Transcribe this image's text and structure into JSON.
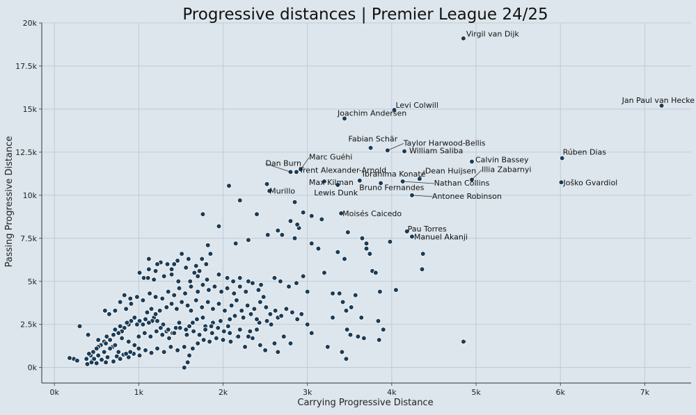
{
  "chart_data": {
    "type": "scatter",
    "title": "Progressive distances | Premier League 24/25",
    "xlabel": "Carrying Progressive Distance",
    "ylabel": "Passing Progressive Distance",
    "xlim": [
      -150,
      7550
    ],
    "ylim": [
      -900,
      20000
    ],
    "x_ticks": [
      0,
      1000,
      2000,
      3000,
      4000,
      5000,
      6000,
      7000
    ],
    "x_tick_labels": [
      "0k",
      "1k",
      "2k",
      "3k",
      "4k",
      "5k",
      "6k",
      "7k"
    ],
    "y_ticks": [
      0,
      2500,
      5000,
      7500,
      10000,
      12500,
      15000,
      17500,
      20000
    ],
    "y_tick_labels": [
      "0k",
      "2.5k",
      "5k",
      "7.5k",
      "10k",
      "12.5k",
      "15k",
      "17.5k",
      "20k"
    ],
    "grid": true,
    "colors": {
      "background": "#dde6ec",
      "point": "#1b3c57",
      "point_edge": "#ffffff",
      "grid": "#b9c4d2",
      "leader": "#333333"
    },
    "labeled_points": [
      {
        "name": "Virgil van Dijk",
        "x": 4850,
        "y": 19100
      },
      {
        "name": "Jan Paul van Hecke",
        "x": 7200,
        "y": 15200
      },
      {
        "name": "Levi Colwill",
        "x": 4030,
        "y": 14950
      },
      {
        "name": "Joachim Andersen",
        "x": 3440,
        "y": 14450
      },
      {
        "name": "Fabian Schär",
        "x": 3750,
        "y": 12750
      },
      {
        "name": "Taylor Harwood-Bellis",
        "x": 3950,
        "y": 12600
      },
      {
        "name": "William Saliba",
        "x": 4150,
        "y": 12550
      },
      {
        "name": "Rúben Dias",
        "x": 6020,
        "y": 12150
      },
      {
        "name": "Calvin Bassey",
        "x": 4950,
        "y": 11950
      },
      {
        "name": "Marc Guéhi",
        "x": 2920,
        "y": 11500
      },
      {
        "name": "Trent Alexander-Arnold",
        "x": 2870,
        "y": 11350
      },
      {
        "name": "Dan Burn",
        "x": 2800,
        "y": 11350
      },
      {
        "name": "Dean Huijsen",
        "x": 4330,
        "y": 10950
      },
      {
        "name": "Illia Zabarnyi",
        "x": 4950,
        "y": 10900
      },
      {
        "name": "Ibrahima Konaté",
        "x": 3620,
        "y": 10850
      },
      {
        "name": "Max Kilman",
        "x": 3200,
        "y": 10800
      },
      {
        "name": "Nathan Collins",
        "x": 4130,
        "y": 10800
      },
      {
        "name": "Joško Gvardiol",
        "x": 6010,
        "y": 10750
      },
      {
        "name": "Bruno Fernandes",
        "x": 3870,
        "y": 10700
      },
      {
        "name": "Lewis Dunk",
        "x": 3360,
        "y": 10600
      },
      {
        "name": "Murillo",
        "x": 2550,
        "y": 10250
      },
      {
        "name": "Antonee Robinson",
        "x": 4240,
        "y": 10000
      },
      {
        "name": "Moisés Caicedo",
        "x": 3400,
        "y": 8950
      },
      {
        "name": "Pau Torres",
        "x": 4180,
        "y": 7900
      },
      {
        "name": "Manuel Akanji",
        "x": 4240,
        "y": 7600
      }
    ],
    "points": [
      [
        2520,
        10650
      ],
      [
        2070,
        10550
      ],
      [
        2200,
        9700
      ],
      [
        1760,
        8900
      ],
      [
        2400,
        8900
      ],
      [
        2850,
        9600
      ],
      [
        2950,
        9000
      ],
      [
        3050,
        8800
      ],
      [
        3170,
        8600
      ],
      [
        1950,
        8200
      ],
      [
        2650,
        7950
      ],
      [
        2700,
        7700
      ],
      [
        2900,
        8100
      ],
      [
        2880,
        8300
      ],
      [
        2800,
        8500
      ],
      [
        2150,
        7200
      ],
      [
        2300,
        7400
      ],
      [
        2530,
        7700
      ],
      [
        2850,
        7500
      ],
      [
        3050,
        7200
      ],
      [
        3130,
        6900
      ],
      [
        3480,
        7850
      ],
      [
        3650,
        7500
      ],
      [
        3700,
        7200
      ],
      [
        3980,
        7300
      ],
      [
        4370,
        6600
      ],
      [
        3360,
        6700
      ],
      [
        3440,
        6300
      ],
      [
        3700,
        6900
      ],
      [
        3740,
        6600
      ],
      [
        3770,
        5600
      ],
      [
        3810,
        5500
      ],
      [
        4360,
        5700
      ],
      [
        4050,
        4500
      ],
      [
        1820,
        7100
      ],
      [
        1750,
        6300
      ],
      [
        1680,
        5900
      ],
      [
        1590,
        6300
      ],
      [
        1510,
        6600
      ],
      [
        1420,
        6000
      ],
      [
        1340,
        6000
      ],
      [
        1260,
        6100
      ],
      [
        1220,
        6000
      ],
      [
        1120,
        6300
      ],
      [
        1060,
        5200
      ],
      [
        1010,
        5500
      ],
      [
        1110,
        5200
      ],
      [
        1180,
        5100
      ],
      [
        1390,
        5400
      ],
      [
        1470,
        5000
      ],
      [
        1610,
        5000
      ],
      [
        1700,
        5300
      ],
      [
        1810,
        5100
      ],
      [
        1950,
        5400
      ],
      [
        2050,
        5200
      ],
      [
        2120,
        5000
      ],
      [
        2200,
        5200
      ],
      [
        2300,
        5000
      ],
      [
        2450,
        4800
      ],
      [
        2610,
        5200
      ],
      [
        2680,
        5000
      ],
      [
        2780,
        4700
      ],
      [
        2870,
        4900
      ],
      [
        2950,
        5300
      ],
      [
        3000,
        4400
      ],
      [
        3200,
        5500
      ],
      [
        3300,
        4300
      ],
      [
        3380,
        4300
      ],
      [
        3570,
        4200
      ],
      [
        3420,
        3800
      ],
      [
        3460,
        3300
      ],
      [
        3520,
        3500
      ],
      [
        3300,
        2900
      ],
      [
        3640,
        2900
      ],
      [
        3840,
        2700
      ],
      [
        3860,
        4400
      ],
      [
        4860,
        1500
      ],
      [
        3900,
        2200
      ],
      [
        4850,
        1500
      ],
      [
        3000,
        2500
      ],
      [
        3050,
        2000
      ],
      [
        3470,
        2200
      ],
      [
        3600,
        1800
      ],
      [
        3510,
        1900
      ],
      [
        3670,
        1700
      ],
      [
        3850,
        1600
      ],
      [
        3410,
        900
      ],
      [
        3460,
        500
      ],
      [
        3240,
        1200
      ],
      [
        2570,
        2500
      ],
      [
        2520,
        2700
      ],
      [
        2430,
        2600
      ],
      [
        2650,
        2900
      ],
      [
        2400,
        2200
      ],
      [
        2320,
        2100
      ],
      [
        2300,
        1800
      ],
      [
        2200,
        2200
      ],
      [
        2170,
        1800
      ],
      [
        2080,
        2000
      ],
      [
        2060,
        2400
      ],
      [
        1970,
        2700
      ],
      [
        1880,
        2600
      ],
      [
        1860,
        2400
      ],
      [
        1790,
        2400
      ],
      [
        1760,
        2900
      ],
      [
        1690,
        2800
      ],
      [
        1640,
        2600
      ],
      [
        1600,
        2400
      ],
      [
        1560,
        2200
      ],
      [
        1480,
        2600
      ],
      [
        1440,
        2300
      ],
      [
        1400,
        2000
      ],
      [
        1360,
        1700
      ],
      [
        1330,
        2100
      ],
      [
        1290,
        2500
      ],
      [
        1260,
        2300
      ],
      [
        1220,
        2700
      ],
      [
        1180,
        2900
      ],
      [
        1160,
        2700
      ],
      [
        1120,
        2600
      ],
      [
        1080,
        2800
      ],
      [
        1050,
        2500
      ],
      [
        1010,
        2700
      ],
      [
        980,
        2500
      ],
      [
        950,
        2900
      ],
      [
        910,
        2700
      ],
      [
        880,
        2500
      ],
      [
        860,
        2600
      ],
      [
        830,
        2300
      ],
      [
        800,
        2100
      ],
      [
        780,
        2400
      ],
      [
        760,
        2000
      ],
      [
        720,
        2200
      ],
      [
        700,
        1900
      ],
      [
        660,
        1600
      ],
      [
        620,
        1800
      ],
      [
        590,
        1500
      ],
      [
        550,
        1300
      ],
      [
        520,
        1200
      ],
      [
        500,
        1100
      ],
      [
        460,
        900
      ],
      [
        430,
        700
      ],
      [
        410,
        800
      ],
      [
        380,
        500
      ],
      [
        230,
        500
      ],
      [
        270,
        400
      ],
      [
        180,
        550
      ],
      [
        300,
        2400
      ],
      [
        400,
        1900
      ],
      [
        520,
        1600
      ],
      [
        610,
        1400
      ],
      [
        690,
        1200
      ],
      [
        760,
        900
      ],
      [
        820,
        750
      ],
      [
        880,
        600
      ],
      [
        940,
        800
      ],
      [
        1010,
        700
      ],
      [
        1080,
        1000
      ],
      [
        1150,
        850
      ],
      [
        1220,
        1100
      ],
      [
        1300,
        900
      ],
      [
        1380,
        1200
      ],
      [
        1460,
        1000
      ],
      [
        1540,
        1200
      ],
      [
        1600,
        700
      ],
      [
        1640,
        1100
      ],
      [
        1700,
        1400
      ],
      [
        1770,
        1600
      ],
      [
        1840,
        1500
      ],
      [
        1920,
        1700
      ],
      [
        2000,
        1600
      ],
      [
        2090,
        1500
      ],
      [
        2180,
        1800
      ],
      [
        2260,
        1200
      ],
      [
        2350,
        1700
      ],
      [
        2440,
        1300
      ],
      [
        2500,
        1000
      ],
      [
        2610,
        1400
      ],
      [
        2650,
        900
      ],
      [
        2720,
        1800
      ],
      [
        2800,
        1400
      ],
      [
        1540,
        0
      ],
      [
        1580,
        300
      ],
      [
        450,
        400
      ],
      [
        500,
        250
      ],
      [
        560,
        450
      ],
      [
        630,
        600
      ],
      [
        700,
        350
      ],
      [
        740,
        650
      ],
      [
        610,
        300
      ],
      [
        780,
        500
      ],
      [
        850,
        800
      ],
      [
        900,
        900
      ],
      [
        1000,
        1100
      ],
      [
        950,
        1300
      ],
      [
        880,
        1500
      ],
      [
        800,
        1700
      ],
      [
        720,
        1300
      ],
      [
        660,
        1100
      ],
      [
        590,
        900
      ],
      [
        520,
        700
      ],
      [
        470,
        500
      ],
      [
        440,
        300
      ],
      [
        390,
        200
      ],
      [
        1100,
        3200
      ],
      [
        1150,
        3400
      ],
      [
        1200,
        3100
      ],
      [
        1250,
        3300
      ],
      [
        1330,
        3500
      ],
      [
        1390,
        3700
      ],
      [
        1450,
        3400
      ],
      [
        1510,
        3800
      ],
      [
        1580,
        3600
      ],
      [
        1620,
        3300
      ],
      [
        1680,
        3900
      ],
      [
        1750,
        3500
      ],
      [
        1820,
        3800
      ],
      [
        1880,
        3400
      ],
      [
        1950,
        3700
      ],
      [
        2020,
        3300
      ],
      [
        2100,
        3600
      ],
      [
        2160,
        3900
      ],
      [
        2220,
        3300
      ],
      [
        2290,
        3600
      ],
      [
        2370,
        3400
      ],
      [
        2440,
        3800
      ],
      [
        2510,
        3500
      ],
      [
        2560,
        3100
      ],
      [
        2620,
        3300
      ],
      [
        2690,
        3000
      ],
      [
        2750,
        3400
      ],
      [
        2820,
        3200
      ],
      [
        2880,
        2800
      ],
      [
        2930,
        3100
      ],
      [
        1050,
        3900
      ],
      [
        980,
        4100
      ],
      [
        910,
        3700
      ],
      [
        850,
        3400
      ],
      [
        780,
        3800
      ],
      [
        720,
        3300
      ],
      [
        650,
        3100
      ],
      [
        600,
        3300
      ],
      [
        830,
        4200
      ],
      [
        900,
        4000
      ],
      [
        1130,
        4300
      ],
      [
        1200,
        4100
      ],
      [
        1280,
        4000
      ],
      [
        1350,
        4400
      ],
      [
        1420,
        4200
      ],
      [
        1480,
        4600
      ],
      [
        1550,
        4300
      ],
      [
        1620,
        4700
      ],
      [
        1700,
        4400
      ],
      [
        1760,
        4800
      ],
      [
        1830,
        4500
      ],
      [
        1900,
        4700
      ],
      [
        1980,
        4400
      ],
      [
        2050,
        4600
      ],
      [
        2130,
        4300
      ],
      [
        2200,
        4700
      ],
      [
        2270,
        4400
      ],
      [
        2350,
        4900
      ],
      [
        2420,
        4500
      ],
      [
        2480,
        4100
      ],
      [
        1000,
        1800
      ],
      [
        1070,
        2000
      ],
      [
        1140,
        1800
      ],
      [
        1210,
        2100
      ],
      [
        1280,
        1900
      ],
      [
        1350,
        2200
      ],
      [
        1420,
        2000
      ],
      [
        1490,
        2300
      ],
      [
        1570,
        1900
      ],
      [
        1650,
        2100
      ],
      [
        1720,
        1900
      ],
      [
        1790,
        2200
      ],
      [
        1870,
        2000
      ],
      [
        1940,
        2300
      ],
      [
        2010,
        2100
      ],
      [
        2080,
        2800
      ],
      [
        2140,
        3000
      ],
      [
        2240,
        2900
      ],
      [
        2330,
        3100
      ],
      [
        2400,
        2800
      ],
      [
        1850,
        6600
      ],
      [
        1800,
        6000
      ],
      [
        1720,
        5600
      ],
      [
        1660,
        5500
      ],
      [
        1560,
        5800
      ],
      [
        1460,
        6200
      ],
      [
        1390,
        5700
      ],
      [
        1300,
        5300
      ],
      [
        1200,
        5600
      ],
      [
        1120,
        5700
      ]
    ]
  }
}
